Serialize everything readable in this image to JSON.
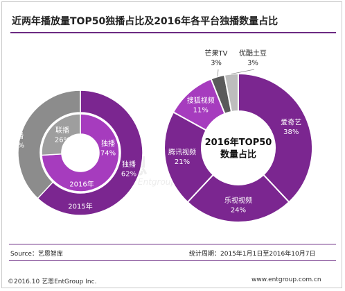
{
  "title": "近两年播放量TOP50独播占比及2016年各平台独播数量占比",
  "watermark": {
    "main": "艺恩",
    "sub": "Entgroup"
  },
  "colors": {
    "purple": "#7b2690",
    "magenta": "#a63cbe",
    "gray": "#8c8c8c",
    "gray_inner": "#9e9e9e",
    "light_gray": "#bdbdbd",
    "dark_gray": "#5a5a5a",
    "rule": "#6b2a82"
  },
  "chart_data": [
    {
      "type": "pie",
      "subtype": "nested-donut",
      "rings": [
        {
          "label": "2015年",
          "slices": [
            {
              "name": "独播",
              "value": 62,
              "label": "独播\n62%"
            },
            {
              "name": "联播",
              "value": 38,
              "label": "联播\n38%"
            }
          ]
        },
        {
          "label": "2016年",
          "slices": [
            {
              "name": "独播",
              "value": 74,
              "label": "独播\n74%"
            },
            {
              "name": "联播",
              "value": 26,
              "label": "联播\n26%"
            }
          ]
        }
      ]
    },
    {
      "type": "pie",
      "subtype": "donut",
      "center_label": "2016年TOP50\n数量占比",
      "slices": [
        {
          "name": "爱奇艺",
          "value": 38,
          "label": "爱奇艺\n38%"
        },
        {
          "name": "乐视视频",
          "value": 24,
          "label": "乐视视频\n24%"
        },
        {
          "name": "腾讯视频",
          "value": 21,
          "label": "腾讯视频\n21%"
        },
        {
          "name": "搜狐视频",
          "value": 11,
          "label": "搜狐视频\n11%"
        },
        {
          "name": "芒果TV",
          "value": 3,
          "label": "芒果TV\n3%"
        },
        {
          "name": "优酷土豆",
          "value": 3,
          "label": "优酷土豆\n3%"
        }
      ]
    }
  ],
  "footer": {
    "source": "Source：艺恩智库",
    "period": "统计周期：2015年1月1日至2016年10月7日"
  },
  "bottom": {
    "copyright": "©2016.10 艺恩EntGroup Inc.",
    "website": "www.entgroup.com.cn"
  }
}
